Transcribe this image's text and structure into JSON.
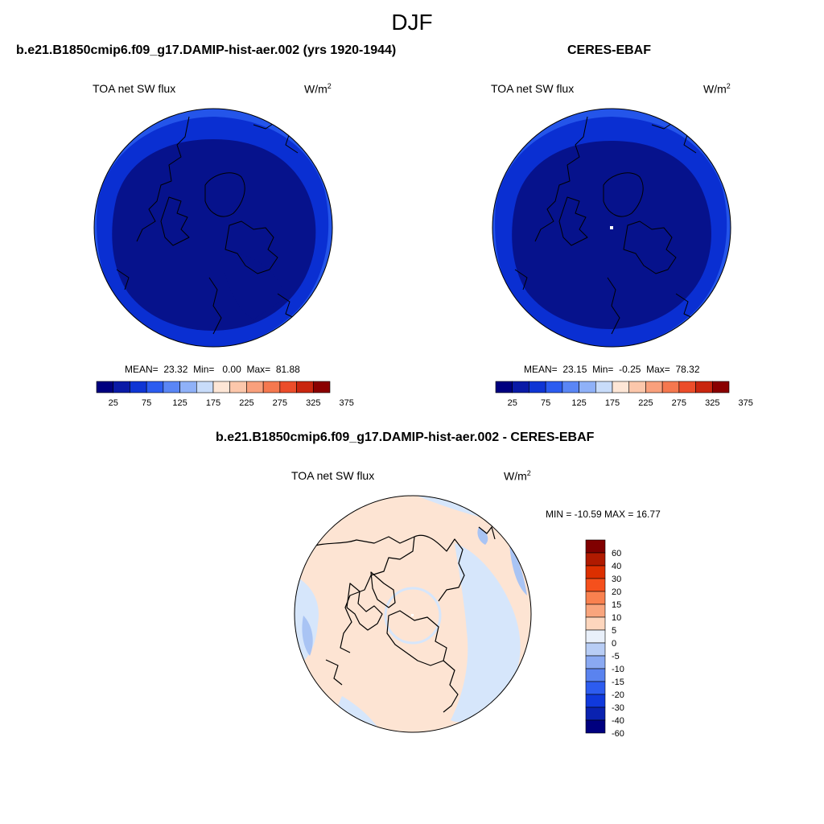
{
  "figure": {
    "title": "DJF"
  },
  "panels": [
    {
      "case_title": "b.e21.B1850cmip6.f09_g17.DAMIP-hist-aer.002 (yrs 1920-1944)",
      "variable": "TOA net SW flux",
      "units_base": "W/m",
      "units_sup": "2",
      "stats": {
        "mean_label": "MEAN=",
        "mean": "23.32",
        "min_label": "Min=",
        "min": "0.00",
        "max_label": "Max=",
        "max": "81.88"
      },
      "contour_fill_zones": [
        {
          "level_range": "below 25",
          "color": "#06128c"
        },
        {
          "level_range": "25-50",
          "color": "#0a2fd2"
        },
        {
          "level_range": "50-75",
          "color": "#2455ea"
        }
      ],
      "white_point_at_pole": false
    },
    {
      "case_title": "CERES-EBAF",
      "variable": "TOA net SW flux",
      "units_base": "W/m",
      "units_sup": "2",
      "stats": {
        "mean_label": "MEAN=",
        "mean": "23.15",
        "min_label": "Min=",
        "min": "-0.25",
        "max_label": "Max=",
        "max": "78.32"
      },
      "contour_fill_zones": [
        {
          "level_range": "below 25",
          "color": "#06128c"
        },
        {
          "level_range": "25-50",
          "color": "#0a2fd2"
        },
        {
          "level_range": "50-75",
          "color": "#2455ea"
        }
      ],
      "white_point_at_pole": true
    }
  ],
  "abs_colorbar": {
    "colors": [
      "#00007f",
      "#0a1aa6",
      "#0e35d4",
      "#2b5cf0",
      "#5a86f5",
      "#8fb1f8",
      "#c8dcfa",
      "#fde6d6",
      "#fcc7ab",
      "#f9a07c",
      "#f5784f",
      "#ec4d2a",
      "#c9260f",
      "#8a0000"
    ],
    "labels": [
      "25",
      "75",
      "125",
      "175",
      "225",
      "275",
      "325",
      "375"
    ]
  },
  "diff_panel": {
    "title": "b.e21.B1850cmip6.f09_g17.DAMIP-hist-aer.002 - CERES-EBAF",
    "variable": "TOA net SW flux",
    "units_base": "W/m",
    "units_sup": "2",
    "minmax": "MIN = -10.59 MAX =  16.77",
    "colorbar": {
      "colors_top_to_bottom": [
        "#800000",
        "#b01a00",
        "#dc2f00",
        "#f5501c",
        "#f9814f",
        "#f9a57d",
        "#fdd6bd",
        "#e9f0fa",
        "#b8cdf5",
        "#8aa9f2",
        "#5a83ef",
        "#2d5cef",
        "#1039dc",
        "#0a22b0",
        "#00007f"
      ],
      "labels_top_to_bottom": [
        "60",
        "40",
        "30",
        "20",
        "15",
        "10",
        "5",
        "0",
        "-5",
        "-10",
        "-15",
        "-20",
        "-30",
        "-40",
        "-60"
      ]
    },
    "fill_zones": [
      {
        "level_range": "0 to 5",
        "color": "#fde4d3"
      },
      {
        "level_range": "-5 to 0",
        "color": "#d6e6fb"
      },
      {
        "level_range": "-10 to -5",
        "color": "#a9c4f4"
      }
    ]
  }
}
